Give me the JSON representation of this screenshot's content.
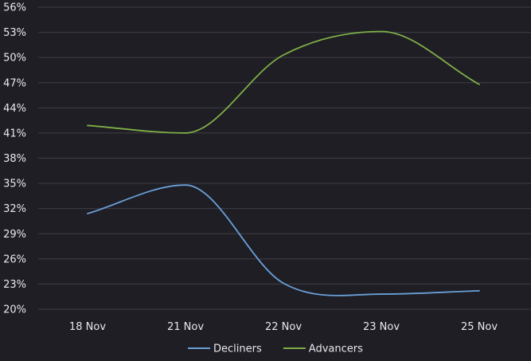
{
  "chart_data": {
    "type": "line",
    "title": "",
    "xlabel": "",
    "ylabel": "",
    "categories": [
      "18 Nov",
      "21 Nov",
      "22 Nov",
      "23 Nov",
      "25 Nov"
    ],
    "y_ticks": [
      "20%",
      "23%",
      "26%",
      "29%",
      "32%",
      "35%",
      "38%",
      "41%",
      "44%",
      "47%",
      "50%",
      "53%",
      "56%"
    ],
    "ylim": [
      20,
      56
    ],
    "grid": true,
    "legend_position": "bottom",
    "series": [
      {
        "name": "Decliners",
        "color": "#6a9fd8",
        "values": [
          31.4,
          34.8,
          23.1,
          21.8,
          22.2
        ]
      },
      {
        "name": "Advancers",
        "color": "#7fae47",
        "values": [
          41.9,
          41.0,
          50.3,
          53.1,
          46.8
        ]
      }
    ]
  }
}
